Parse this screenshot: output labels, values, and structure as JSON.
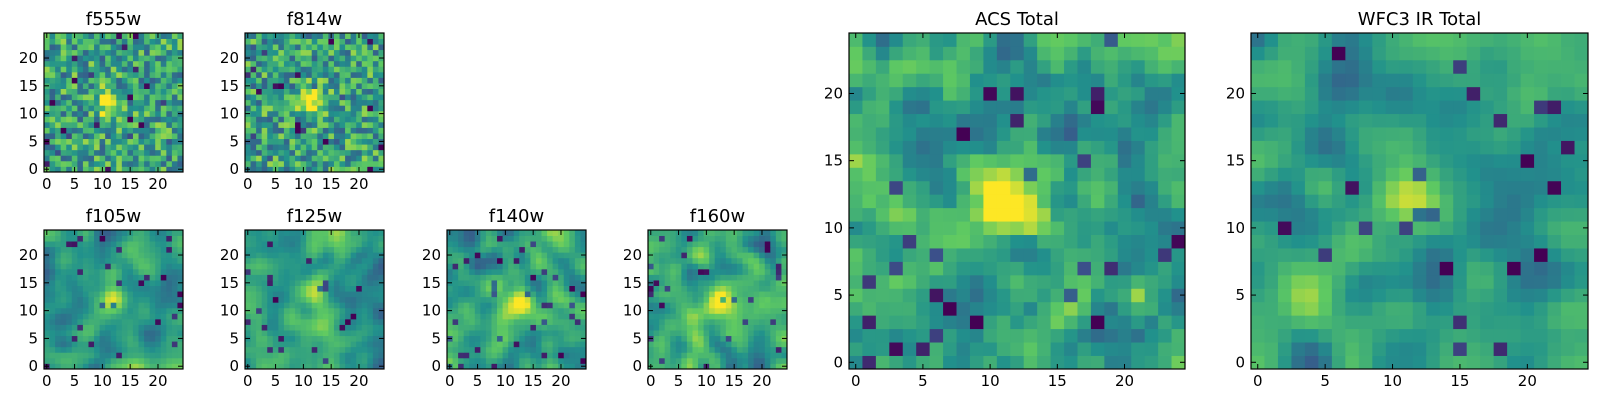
{
  "colors": {
    "colormap": [
      "#440154",
      "#3b528b",
      "#21918c",
      "#5ec962",
      "#fde725"
    ],
    "axes_frame": "#000000",
    "background": "#ffffff"
  },
  "chart_data": [
    {
      "id": "f555w",
      "type": "heatmap",
      "title": "f555w",
      "grid_size": 25,
      "xticks": [
        0,
        5,
        10,
        15,
        20
      ],
      "yticks": [
        0,
        5,
        10,
        15,
        20
      ],
      "xlim": [
        -0.5,
        24.5
      ],
      "ylim": [
        -0.5,
        24.5
      ],
      "source_center": [
        11,
        12
      ],
      "texture": "noisy"
    },
    {
      "id": "f814w",
      "type": "heatmap",
      "title": "f814w",
      "grid_size": 25,
      "xticks": [
        0,
        5,
        10,
        15,
        20
      ],
      "yticks": [
        0,
        5,
        10,
        15,
        20
      ],
      "xlim": [
        -0.5,
        24.5
      ],
      "ylim": [
        -0.5,
        24.5
      ],
      "source_center": [
        12,
        12
      ],
      "texture": "noisy"
    },
    {
      "id": "f105w",
      "type": "heatmap",
      "title": "f105w",
      "grid_size": 25,
      "xticks": [
        0,
        5,
        10,
        15,
        20
      ],
      "yticks": [
        0,
        5,
        10,
        15,
        20
      ],
      "xlim": [
        -0.5,
        24.5
      ],
      "ylim": [
        -0.5,
        24.5
      ],
      "source_center": [
        12,
        12
      ],
      "texture": "smooth"
    },
    {
      "id": "f125w",
      "type": "heatmap",
      "title": "f125w",
      "grid_size": 25,
      "xticks": [
        0,
        5,
        10,
        15,
        20
      ],
      "yticks": [
        0,
        5,
        10,
        15,
        20
      ],
      "xlim": [
        -0.5,
        24.5
      ],
      "ylim": [
        -0.5,
        24.5
      ],
      "source_center": [
        12,
        13
      ],
      "texture": "smooth"
    },
    {
      "id": "f140w",
      "type": "heatmap",
      "title": "f140w",
      "grid_size": 25,
      "xticks": [
        0,
        5,
        10,
        15,
        20
      ],
      "yticks": [
        0,
        5,
        10,
        15,
        20
      ],
      "xlim": [
        -0.5,
        24.5
      ],
      "ylim": [
        -0.5,
        24.5
      ],
      "source_center": [
        13,
        11
      ],
      "texture": "smooth"
    },
    {
      "id": "f160w",
      "type": "heatmap",
      "title": "f160w",
      "grid_size": 25,
      "xticks": [
        0,
        5,
        10,
        15,
        20
      ],
      "yticks": [
        0,
        5,
        10,
        15,
        20
      ],
      "xlim": [
        -0.5,
        24.5
      ],
      "ylim": [
        -0.5,
        24.5
      ],
      "source_center": [
        12,
        12
      ],
      "texture": "smooth"
    },
    {
      "id": "acs-total",
      "type": "heatmap",
      "title": "ACS Total",
      "grid_size": 25,
      "xticks": [
        0,
        5,
        10,
        15,
        20
      ],
      "yticks": [
        0,
        5,
        10,
        15,
        20
      ],
      "xlim": [
        -0.5,
        24.5
      ],
      "ylim": [
        -0.5,
        24.5
      ],
      "source_center": [
        12,
        12
      ],
      "texture": "medium"
    },
    {
      "id": "wfc3-ir-total",
      "type": "heatmap",
      "title": "WFC3 IR Total",
      "grid_size": 25,
      "xticks": [
        0,
        5,
        10,
        15,
        20
      ],
      "yticks": [
        0,
        5,
        10,
        15,
        20
      ],
      "xlim": [
        -0.5,
        24.5
      ],
      "ylim": [
        -0.5,
        24.5
      ],
      "source_center": [
        11,
        12
      ],
      "texture": "smooth"
    }
  ]
}
